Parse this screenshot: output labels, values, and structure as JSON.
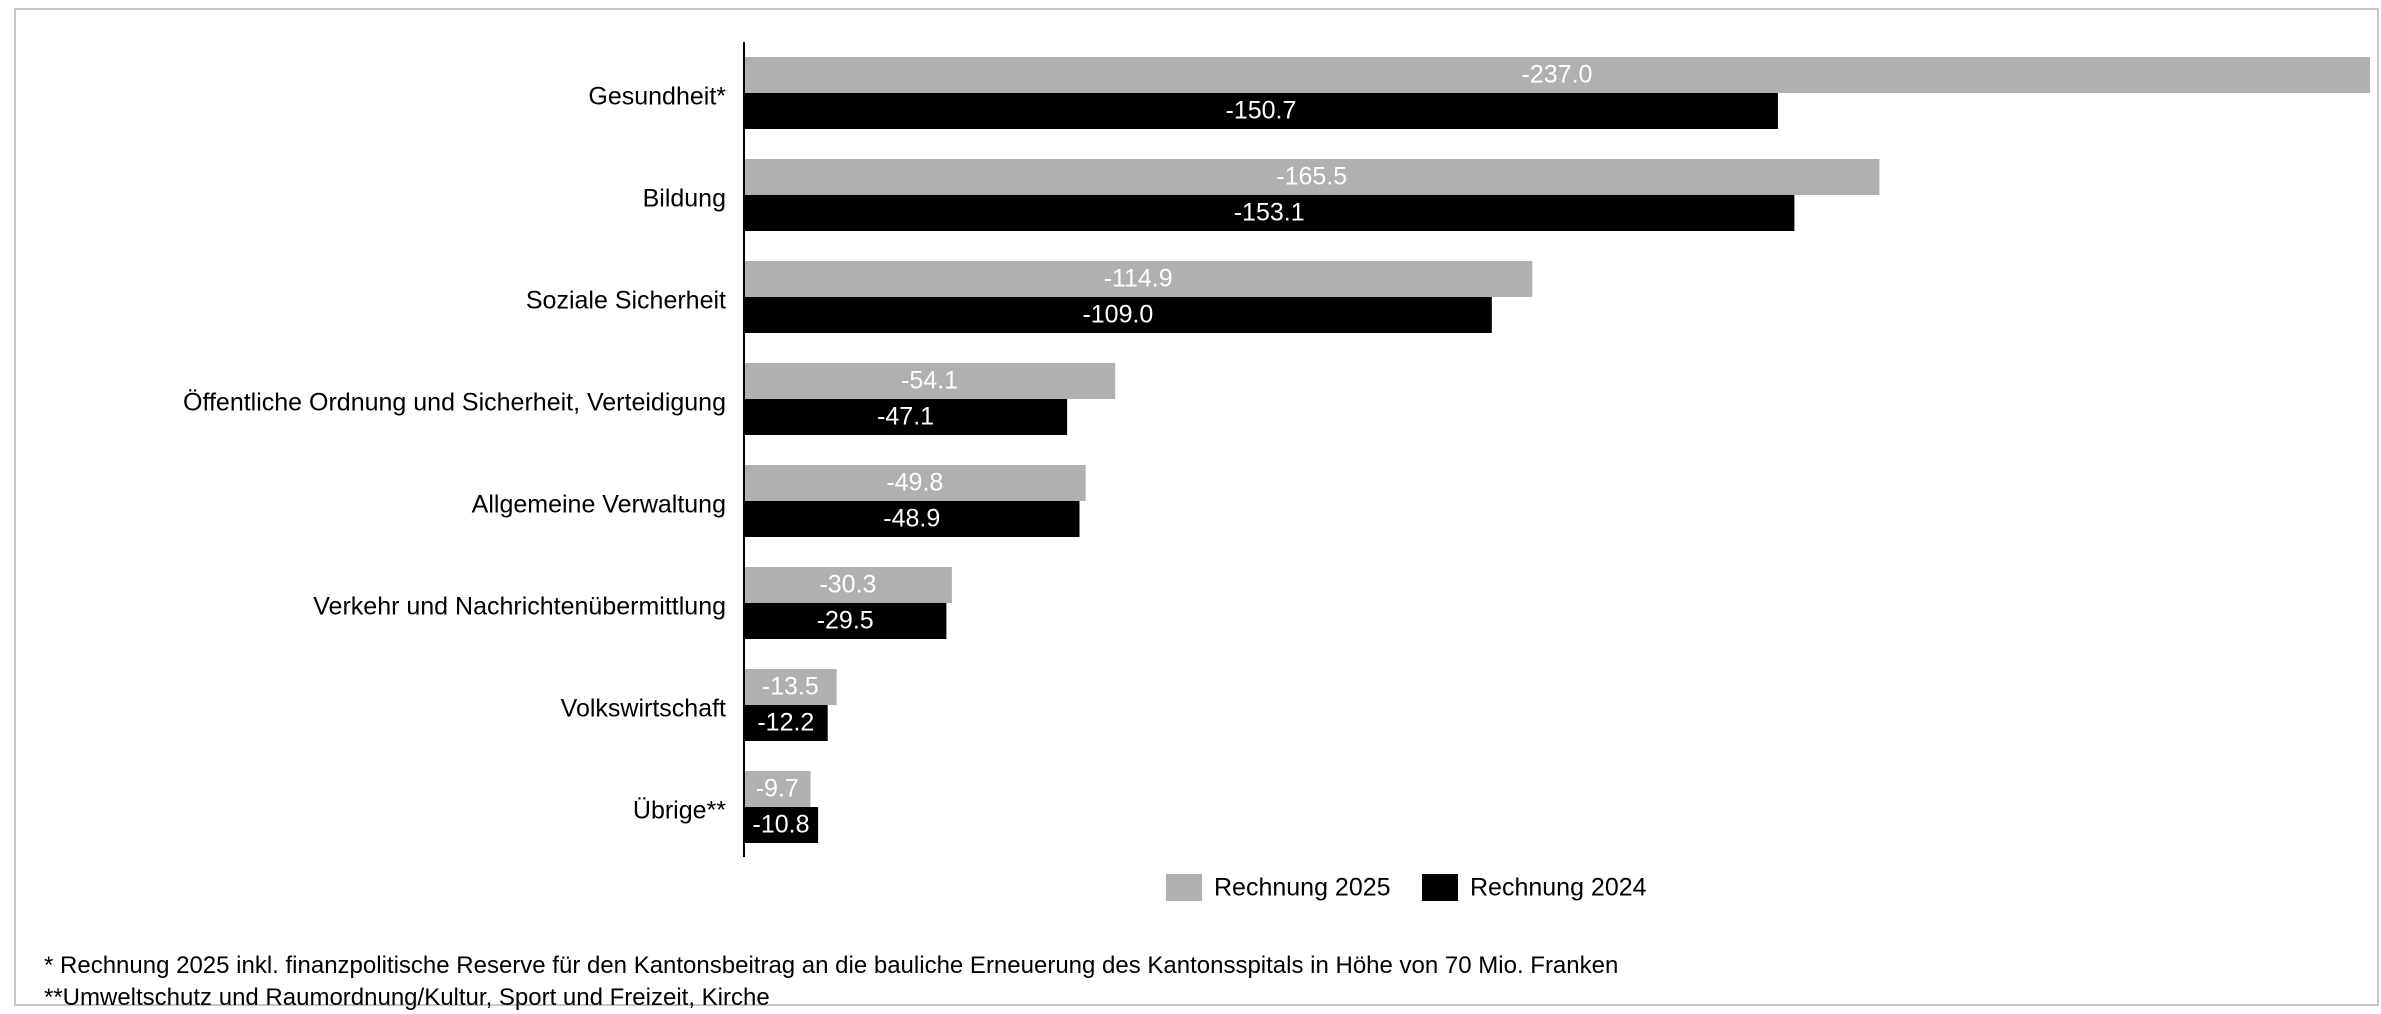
{
  "chart_data": {
    "type": "bar",
    "orientation": "horizontal",
    "categories": [
      "Gesundheit*",
      "Bildung",
      "Soziale Sicherheit",
      "Öffentliche Ordnung und Sicherheit, Verteidigung",
      "Allgemeine Verwaltung",
      "Verkehr und Nachrichtenübermittlung",
      "Volkswirtschaft",
      "Übrige**"
    ],
    "series": [
      {
        "name": "Rechnung 2025",
        "color": "#b0b0b0",
        "label_color": "#ffffff",
        "values": [
          -237.0,
          -165.5,
          -114.9,
          -54.1,
          -49.8,
          -30.3,
          -13.5,
          -9.7
        ],
        "labels": [
          "-237.0",
          "-165.5",
          "-114.9",
          "-54.1",
          "-49.8",
          "-30.3",
          "-13.5",
          "-9.7"
        ]
      },
      {
        "name": "Rechnung 2024",
        "color": "#000000",
        "label_color": "#ffffff",
        "values": [
          -150.7,
          -153.1,
          -109.0,
          -47.1,
          -48.9,
          -29.5,
          -12.2,
          -10.8
        ],
        "labels": [
          "-150.7",
          "-153.1",
          "-109.0",
          "-47.1",
          "-48.9",
          "-29.5",
          "-12.2",
          "-10.8"
        ]
      }
    ],
    "xlim": [
      0,
      -237.0
    ],
    "grid": false,
    "legend_position": "bottom"
  },
  "footnotes": [
    "* Rechnung 2025 inkl. finanzpolitische Reserve für den Kantonsbeitrag an die bauliche Erneuerung des Kantonsspitals in Höhe von 70 Mio. Franken",
    "**Umweltschutz und Raumordnung/Kultur, Sport und Freizeit, Kirche"
  ]
}
